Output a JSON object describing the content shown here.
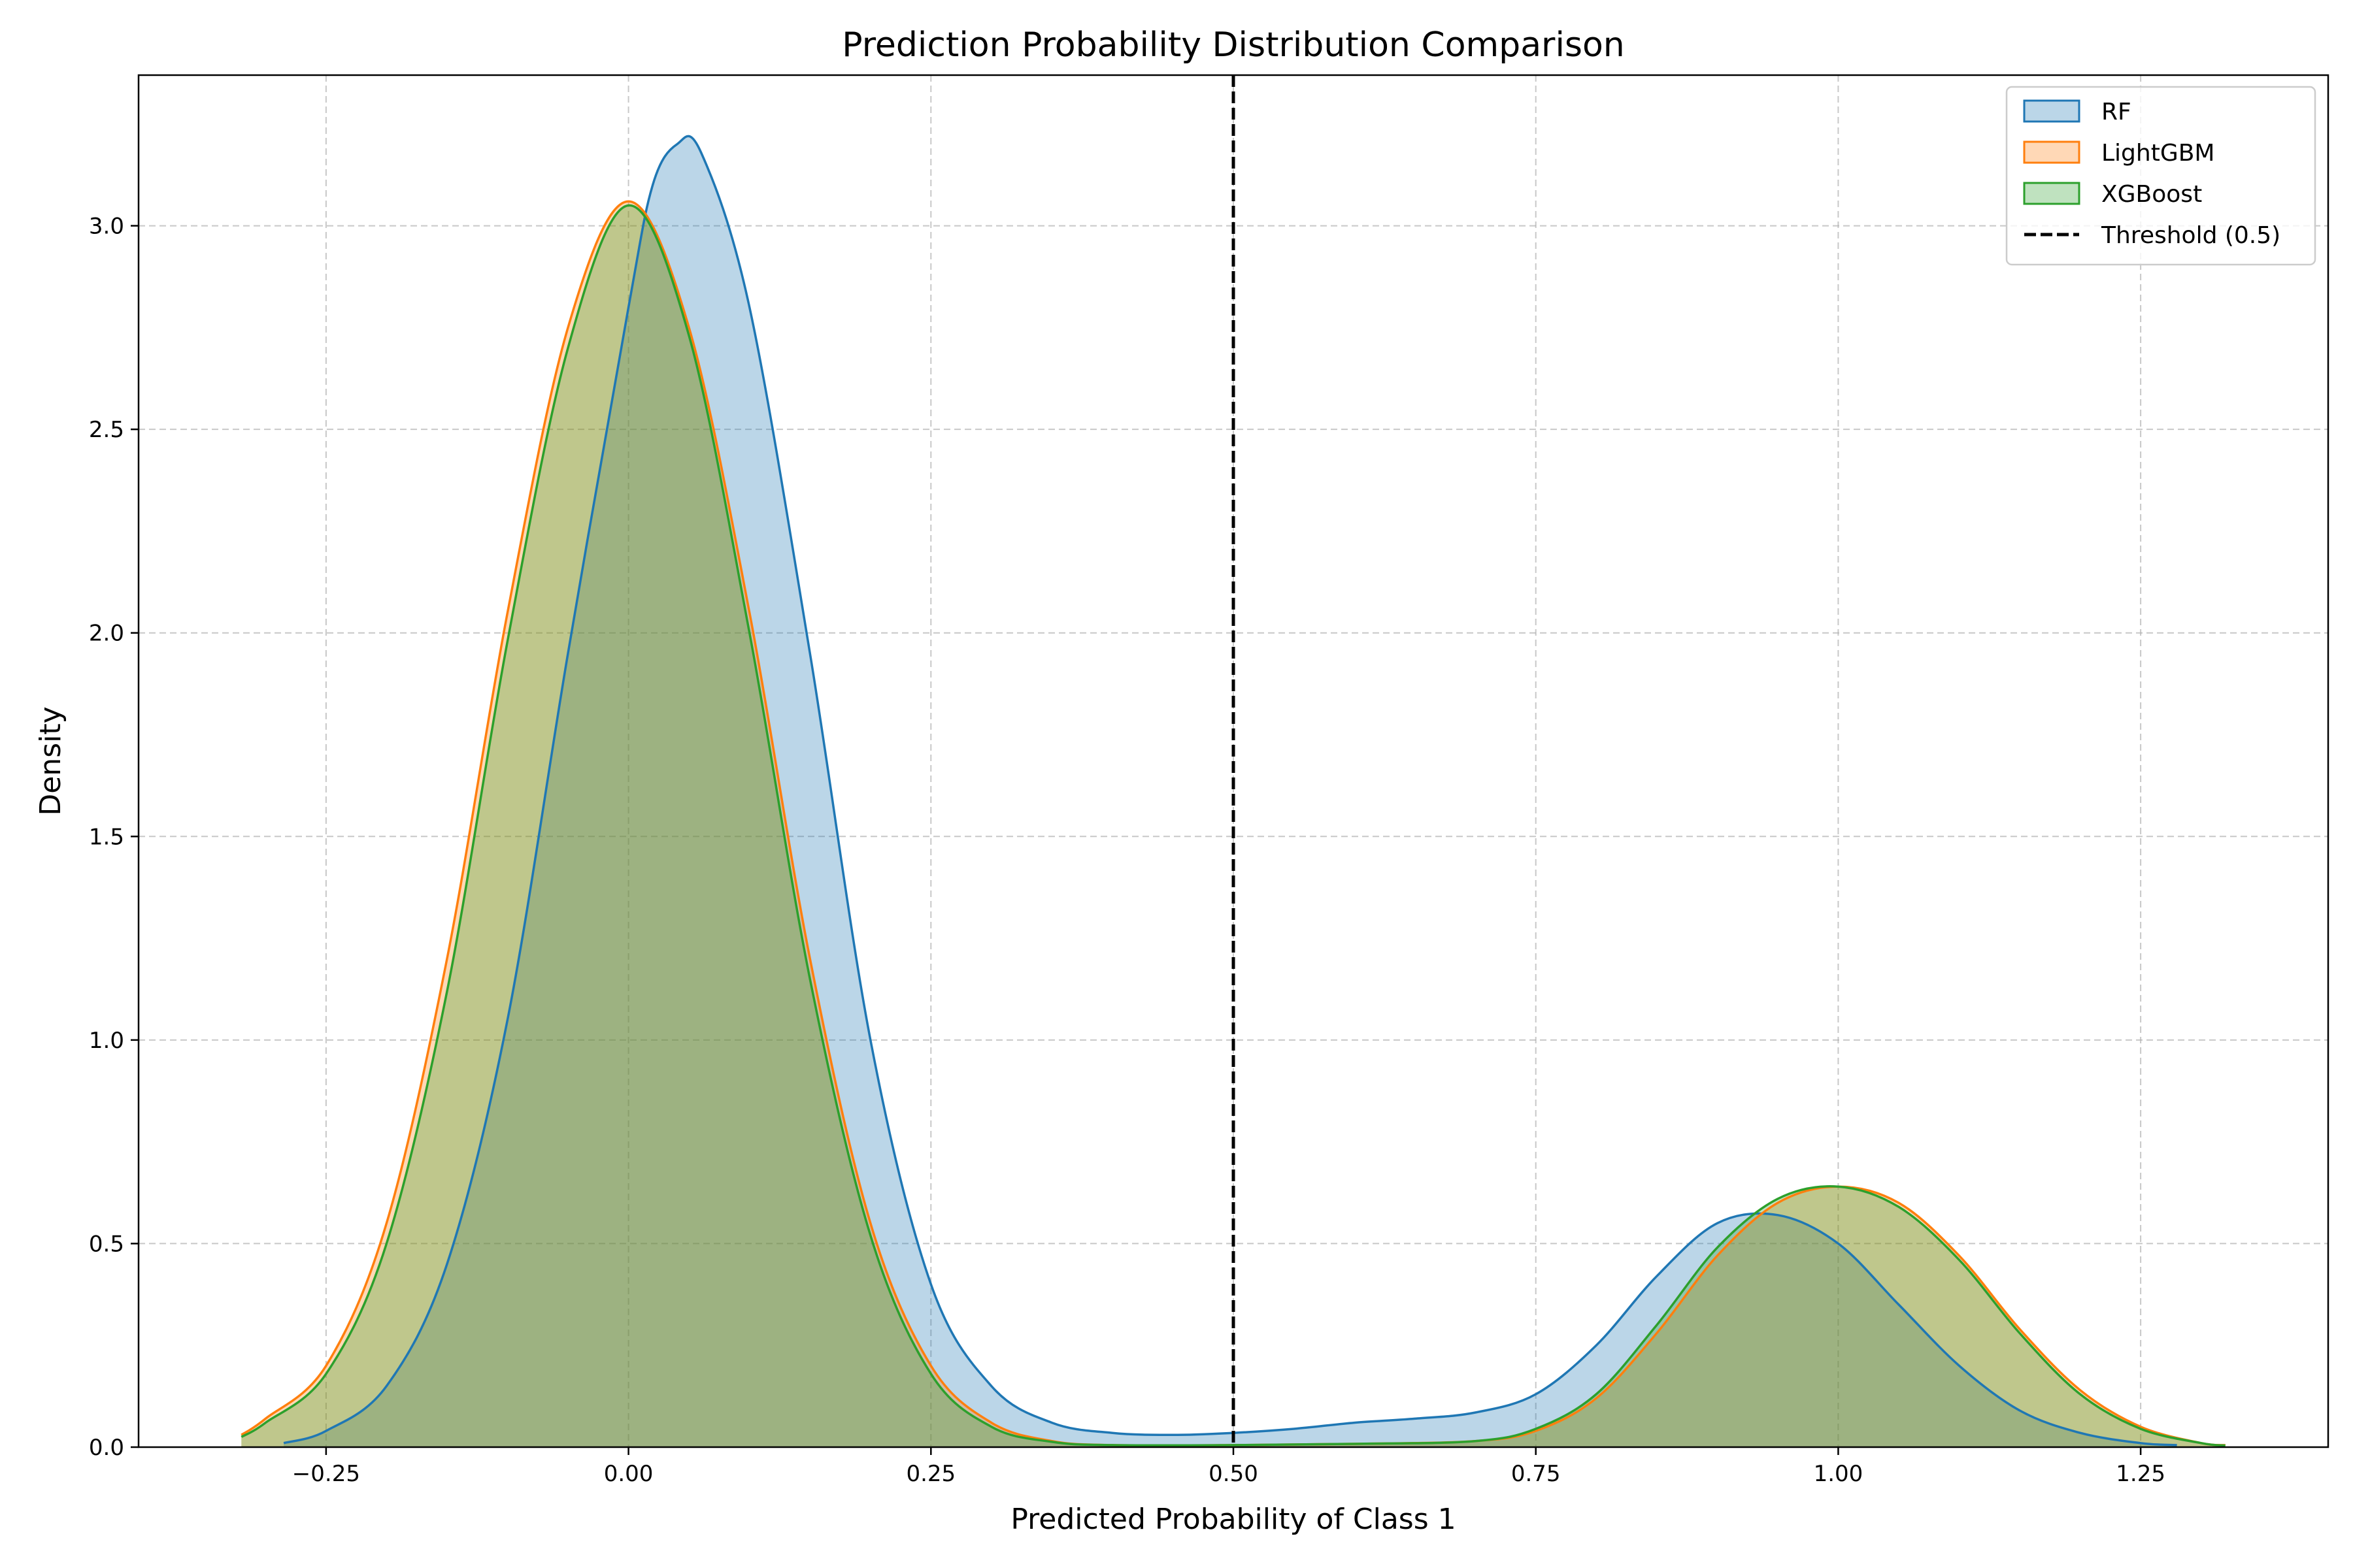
{
  "chart_data": {
    "type": "area",
    "title": "Prediction Probability Distribution Comparison",
    "xlabel": "Predicted Probability of Class 1",
    "ylabel": "Density",
    "xlim": [
      -0.405,
      1.405
    ],
    "ylim": [
      0,
      3.37
    ],
    "xticks": [
      -0.25,
      0.0,
      0.25,
      0.5,
      0.75,
      1.0,
      1.25
    ],
    "xtick_labels": [
      "−0.25",
      "0.00",
      "0.25",
      "0.50",
      "0.75",
      "1.00",
      "1.25"
    ],
    "yticks": [
      0.0,
      0.5,
      1.0,
      1.5,
      2.0,
      2.5,
      3.0
    ],
    "ytick_labels": [
      "0.0",
      "0.5",
      "1.0",
      "1.5",
      "2.0",
      "2.5",
      "3.0"
    ],
    "grid": true,
    "legend_position": "top-right",
    "threshold": {
      "x": 0.5,
      "label": "Threshold (0.5)",
      "color": "#000000"
    },
    "series": [
      {
        "name": "RF",
        "color": "#1f77b4",
        "x": [
          -0.285,
          -0.25,
          -0.2,
          -0.15,
          -0.1,
          -0.05,
          0.0,
          0.02,
          0.04,
          0.06,
          0.1,
          0.15,
          0.2,
          0.25,
          0.3,
          0.35,
          0.4,
          0.45,
          0.5,
          0.55,
          0.6,
          0.65,
          0.7,
          0.75,
          0.8,
          0.85,
          0.9,
          0.95,
          1.0,
          1.05,
          1.1,
          1.15,
          1.2,
          1.25,
          1.28
        ],
        "y": [
          0.01,
          0.04,
          0.15,
          0.45,
          1.05,
          1.95,
          2.8,
          3.1,
          3.2,
          3.18,
          2.8,
          1.95,
          1.0,
          0.4,
          0.15,
          0.06,
          0.035,
          0.03,
          0.035,
          0.045,
          0.06,
          0.07,
          0.085,
          0.13,
          0.25,
          0.42,
          0.55,
          0.57,
          0.5,
          0.35,
          0.2,
          0.09,
          0.035,
          0.01,
          0.005
        ]
      },
      {
        "name": "LightGBM",
        "color": "#ff7f0e",
        "x": [
          -0.32,
          -0.3,
          -0.25,
          -0.2,
          -0.15,
          -0.1,
          -0.05,
          0.0,
          0.05,
          0.1,
          0.15,
          0.2,
          0.25,
          0.3,
          0.35,
          0.4,
          0.5,
          0.6,
          0.7,
          0.75,
          0.8,
          0.85,
          0.9,
          0.95,
          1.0,
          1.05,
          1.1,
          1.15,
          1.2,
          1.25,
          1.3,
          1.32
        ],
        "y": [
          0.03,
          0.07,
          0.2,
          0.55,
          1.2,
          2.05,
          2.75,
          3.06,
          2.75,
          2.05,
          1.2,
          0.55,
          0.2,
          0.06,
          0.015,
          0.005,
          0.005,
          0.008,
          0.015,
          0.04,
          0.12,
          0.28,
          0.47,
          0.6,
          0.64,
          0.6,
          0.47,
          0.29,
          0.14,
          0.05,
          0.01,
          0.005
        ]
      },
      {
        "name": "XGBoost",
        "color": "#2ca02c",
        "x": [
          -0.32,
          -0.3,
          -0.25,
          -0.2,
          -0.15,
          -0.1,
          -0.05,
          0.0,
          0.05,
          0.1,
          0.15,
          0.2,
          0.25,
          0.3,
          0.35,
          0.4,
          0.5,
          0.6,
          0.7,
          0.75,
          0.8,
          0.85,
          0.9,
          0.95,
          1.0,
          1.05,
          1.1,
          1.15,
          1.2,
          1.25,
          1.3,
          1.32
        ],
        "y": [
          0.025,
          0.06,
          0.18,
          0.5,
          1.12,
          1.98,
          2.7,
          3.05,
          2.73,
          2.0,
          1.15,
          0.52,
          0.18,
          0.05,
          0.013,
          0.005,
          0.005,
          0.008,
          0.015,
          0.045,
          0.13,
          0.3,
          0.49,
          0.61,
          0.64,
          0.59,
          0.46,
          0.28,
          0.13,
          0.045,
          0.01,
          0.004
        ]
      }
    ]
  }
}
